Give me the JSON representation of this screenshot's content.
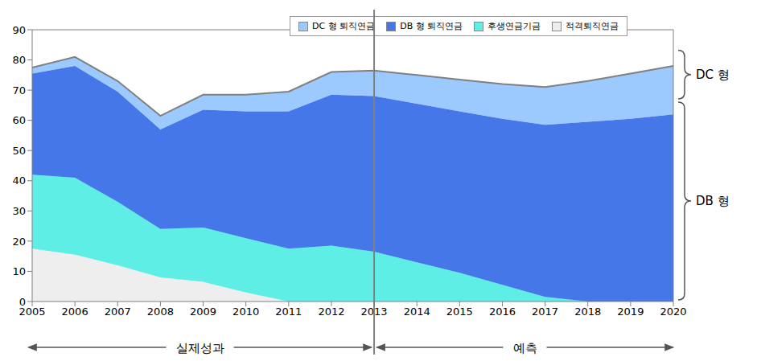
{
  "chart_data": {
    "type": "area",
    "stacked": true,
    "grid": false,
    "legend": "top",
    "x": [
      2005,
      2006,
      2007,
      2008,
      2009,
      2010,
      2011,
      2012,
      2013,
      2014,
      2015,
      2016,
      2017,
      2018,
      2019,
      2020
    ],
    "xlim": [
      2005,
      2020
    ],
    "xticks": [
      2005,
      2006,
      2007,
      2008,
      2009,
      2010,
      2011,
      2012,
      2013,
      2014,
      2015,
      2016,
      2017,
      2018,
      2019,
      2020
    ],
    "ylim": [
      0,
      90
    ],
    "yticks": [
      0,
      10,
      20,
      30,
      40,
      50,
      60,
      70,
      80,
      90
    ],
    "series": [
      {
        "name": "적격퇴직연금",
        "color": "#eeeeee",
        "values": [
          17.5,
          15.5,
          12,
          8,
          6.5,
          3,
          0,
          0,
          0,
          0,
          0,
          0,
          0,
          0,
          0,
          0
        ]
      },
      {
        "name": "후생연금기금",
        "color": "#5eeee6",
        "values": [
          24.5,
          25.5,
          21,
          16,
          18,
          18,
          17.5,
          18.5,
          16.5,
          13,
          9.5,
          5.5,
          1.5,
          0,
          0,
          0
        ]
      },
      {
        "name": "DB 형 퇴직연금",
        "color": "#4677e8",
        "values": [
          33.5,
          37,
          36.5,
          33,
          39,
          42,
          45.5,
          50,
          51.5,
          52.5,
          53.5,
          55,
          57,
          59.5,
          60.5,
          62
        ]
      },
      {
        "name": "DC 형 퇴직연금",
        "color": "#9ccaff",
        "values": [
          2,
          3,
          3.5,
          4.5,
          5,
          5.5,
          6.5,
          7.5,
          8.5,
          9.5,
          10.5,
          11.5,
          12.5,
          13.5,
          15,
          16
        ]
      }
    ],
    "annotations": {
      "periods": [
        {
          "label": "실제성과",
          "from": 2005,
          "to": 2013
        },
        {
          "label": "예측",
          "from": 2013,
          "to": 2020
        }
      ],
      "brackets": [
        {
          "label": "DB 형",
          "series": [
            "적격퇴직연금",
            "후생연금기금",
            "DB 형 퇴직연금"
          ]
        },
        {
          "label": "DC 형",
          "series": [
            "DC 형 퇴직연금"
          ]
        }
      ]
    }
  }
}
